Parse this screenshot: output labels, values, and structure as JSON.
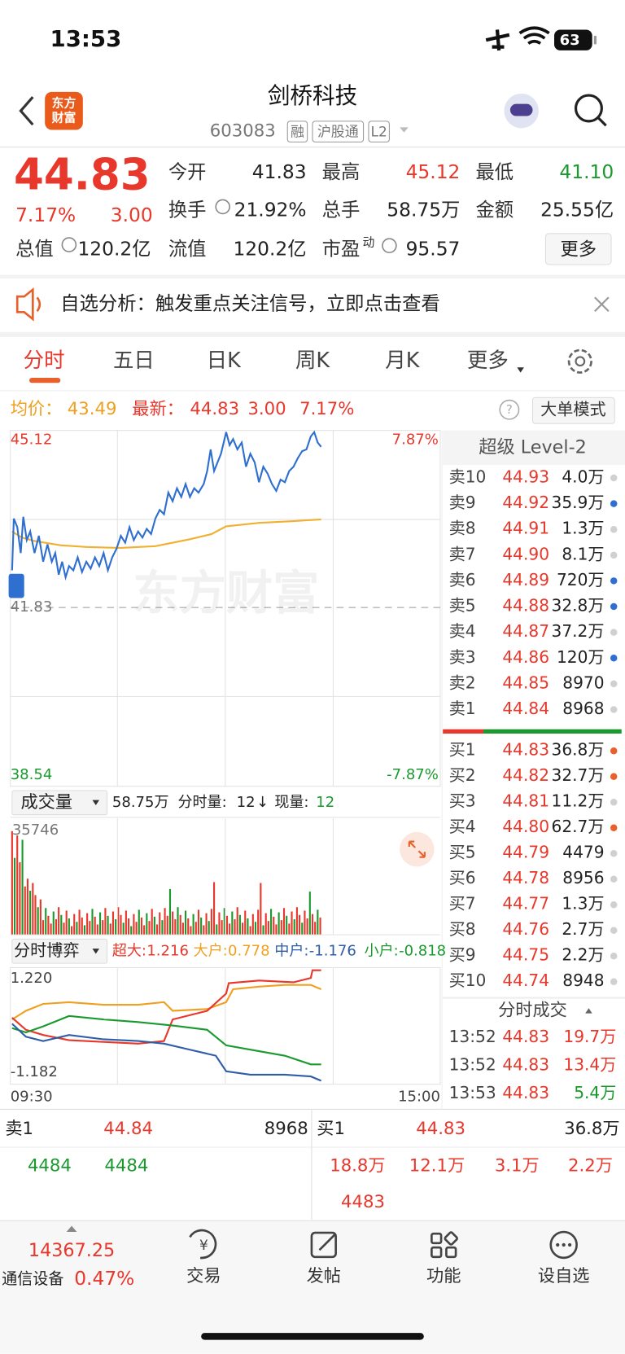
{
  "status_bar": {
    "time": "13:53",
    "battery": "63"
  },
  "header": {
    "logo_lines": [
      "东方",
      "财富"
    ],
    "title": "剑桥科技",
    "code": "603083",
    "tags": [
      "融",
      "沪股通",
      "L2"
    ]
  },
  "quote": {
    "price": "44.83",
    "change_pct": "7.17%",
    "change": "3.00",
    "fields": [
      {
        "label": "今开",
        "value": "41.83",
        "color": "#222222"
      },
      {
        "label": "最高",
        "value": "45.12",
        "color": "#e8372b"
      },
      {
        "label": "最低",
        "value": "41.10",
        "color": "#1a9a2e"
      },
      {
        "label": "换手",
        "value": "21.92%",
        "color": "#222222"
      },
      {
        "label": "总手",
        "value": "58.75万",
        "color": "#222222"
      },
      {
        "label": "金额",
        "value": "25.55亿",
        "color": "#222222"
      },
      {
        "label": "总值",
        "value": "120.2亿",
        "color": "#222222"
      },
      {
        "label": "流值",
        "value": "120.2亿",
        "color": "#222222"
      },
      {
        "label": "市盈",
        "superscript": "动",
        "value": "95.57",
        "color": "#222222"
      }
    ],
    "more": "更多"
  },
  "banner": {
    "text": "自选分析：触发重点关注信号，立即点击查看"
  },
  "tabs": [
    "分时",
    "五日",
    "日K",
    "周K",
    "月K",
    "更多"
  ],
  "intraday": {
    "avg_label": "均价：",
    "avg": "43.49",
    "latest_label": "最新：",
    "latest": "44.83",
    "change": "3.00",
    "change_pct": "7.17%",
    "mode": "大单模式",
    "high": "45.12",
    "high_pct": "7.87%",
    "prev_close": "41.83",
    "low": "38.54",
    "low_pct": "-7.87%",
    "watermark": "东方财富"
  },
  "volume": {
    "selector": "成交量",
    "total": "58.75万",
    "tick_label": "分时量:",
    "tick": "12",
    "arrow": "↓",
    "current_label": "现量:",
    "current": "12",
    "max": "35746"
  },
  "game": {
    "selector": "分时博弈",
    "items": [
      {
        "label": "超大:",
        "value": "1.216",
        "color": "#e8372b"
      },
      {
        "label": "大户:",
        "value": "0.778",
        "color": "#f0a020"
      },
      {
        "label": "中户:",
        "value": "-1.176",
        "color": "#2f5da8"
      },
      {
        "label": "小户:",
        "value": "-0.818",
        "color": "#1a9a2e"
      }
    ],
    "max": "1.220",
    "min": "-1.182",
    "start": "09:30",
    "end": "15:00"
  },
  "level2": {
    "title": "超级 Level-2",
    "sell": [
      {
        "label": "卖10",
        "price": "44.93",
        "volume": "4.0万",
        "dot": "#d0d0d0"
      },
      {
        "label": "卖9",
        "price": "44.92",
        "volume": "35.9万",
        "dot": "#2f6fd0"
      },
      {
        "label": "卖8",
        "price": "44.91",
        "volume": "1.3万",
        "dot": "#d0d0d0"
      },
      {
        "label": "卖7",
        "price": "44.90",
        "volume": "8.1万",
        "dot": "#d0d0d0"
      },
      {
        "label": "卖6",
        "price": "44.89",
        "volume": "720万",
        "dot": "#2f6fd0"
      },
      {
        "label": "卖5",
        "price": "44.88",
        "volume": "32.8万",
        "dot": "#2f6fd0"
      },
      {
        "label": "卖4",
        "price": "44.87",
        "volume": "37.2万",
        "dot": "#d0d0d0"
      },
      {
        "label": "卖3",
        "price": "44.86",
        "volume": "120万",
        "dot": "#2f6fd0"
      },
      {
        "label": "卖2",
        "price": "44.85",
        "volume": "8970",
        "dot": "#d0d0d0"
      },
      {
        "label": "卖1",
        "price": "44.84",
        "volume": "8968",
        "dot": "#d0d0d0"
      }
    ],
    "buy": [
      {
        "label": "买1",
        "price": "44.83",
        "volume": "36.8万",
        "dot": "#e8602b"
      },
      {
        "label": "买2",
        "price": "44.82",
        "volume": "32.7万",
        "dot": "#e8602b"
      },
      {
        "label": "买3",
        "price": "44.81",
        "volume": "11.2万",
        "dot": "#d0d0d0"
      },
      {
        "label": "买4",
        "price": "44.80",
        "volume": "62.7万",
        "dot": "#e8602b"
      },
      {
        "label": "买5",
        "price": "44.79",
        "volume": "4479",
        "dot": "#d0d0d0"
      },
      {
        "label": "买6",
        "price": "44.78",
        "volume": "8956",
        "dot": "#d0d0d0"
      },
      {
        "label": "买7",
        "price": "44.77",
        "volume": "1.3万",
        "dot": "#d0d0d0"
      },
      {
        "label": "买8",
        "price": "44.76",
        "volume": "2.7万",
        "dot": "#d0d0d0"
      },
      {
        "label": "买9",
        "price": "44.75",
        "volume": "2.2万",
        "dot": "#d0d0d0"
      },
      {
        "label": "买10",
        "price": "44.74",
        "volume": "8948",
        "dot": "#d0d0d0"
      }
    ],
    "trades_title": "分时成交",
    "trades": [
      {
        "time": "13:52",
        "price": "44.83",
        "volume": "19.7万",
        "color": "#e8372b"
      },
      {
        "time": "13:52",
        "price": "44.83",
        "volume": "13.4万",
        "color": "#e8372b"
      },
      {
        "time": "13:53",
        "price": "44.83",
        "volume": "5.4万",
        "color": "#1a9a2e"
      }
    ]
  },
  "order_queue": {
    "sell_label": "卖1",
    "sell_price": "44.84",
    "sell_volume": "8968",
    "sell_orders": [
      "4484",
      "4484"
    ],
    "buy_label": "买1",
    "buy_price": "44.83",
    "buy_volume": "36.8万",
    "buy_orders": [
      "18.8万",
      "12.1万",
      "3.1万",
      "2.2万",
      "4483"
    ]
  },
  "tab_bar": {
    "index_value": "14367.25",
    "index_name": "通信设备",
    "index_change": "0.47%",
    "items": [
      "交易",
      "发帖",
      "功能",
      "设自选"
    ]
  }
}
